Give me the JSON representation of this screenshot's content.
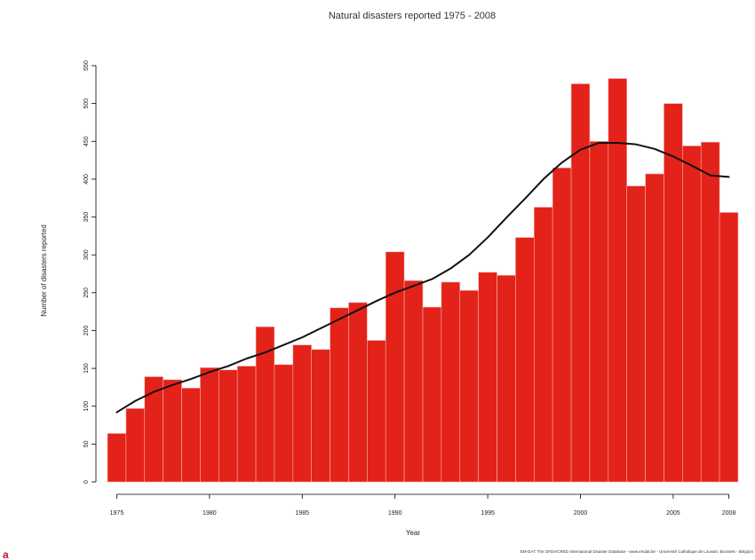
{
  "panel_letter": "a",
  "source_note": "EM-DAT: The OFDA/CRED International Disaster Database - www.emdat.be - Université Catholique de Louvain, Brussels - Belgium",
  "chart_data": {
    "type": "bar",
    "title": "Natural disasters reported 1975 - 2008",
    "xlabel": "Year",
    "ylabel": "Number of disasters reported",
    "categories": [
      1975,
      1976,
      1977,
      1978,
      1979,
      1980,
      1981,
      1982,
      1983,
      1984,
      1985,
      1986,
      1987,
      1988,
      1989,
      1990,
      1991,
      1992,
      1993,
      1994,
      1995,
      1996,
      1997,
      1998,
      1999,
      2000,
      2001,
      2002,
      2003,
      2004,
      2005,
      2006,
      2007,
      2008
    ],
    "series": [
      {
        "values": [
          64,
          97,
          139,
          135,
          124,
          151,
          148,
          153,
          205,
          155,
          181,
          175,
          230,
          237,
          187,
          304,
          266,
          231,
          264,
          253,
          277,
          273,
          323,
          363,
          415,
          526,
          450,
          533,
          391,
          407,
          500,
          444,
          449,
          356
        ],
        "color": "#e32219"
      },
      {
        "type": "line",
        "values": [
          92,
          107,
          119,
          128,
          136,
          145,
          153,
          163,
          171,
          181,
          191,
          203,
          215,
          227,
          239,
          250,
          259,
          268,
          282,
          300,
          323,
          349,
          374,
          400,
          422,
          439,
          448,
          448,
          446,
          440,
          430,
          418,
          405,
          403
        ],
        "color": "#111111"
      }
    ],
    "xticks": [
      1975,
      1980,
      1985,
      1990,
      1995,
      2000,
      2005,
      2008
    ],
    "yticks": [
      0,
      50,
      100,
      150,
      200,
      250,
      300,
      350,
      400,
      450,
      500,
      550
    ],
    "ylim": [
      0,
      550
    ],
    "grid": false,
    "legend": "none"
  }
}
